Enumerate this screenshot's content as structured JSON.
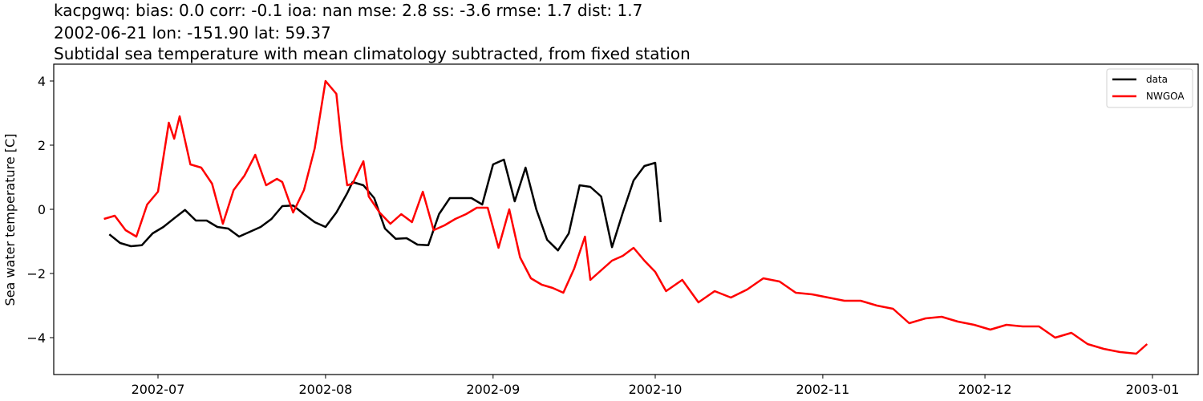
{
  "title": {
    "line1": "kacpgwq: bias: 0.0  corr: -0.1  ioa: nan  mse: 2.8  ss: -3.6  rmse: 1.7  dist: 1.7",
    "line2": "2002-06-21 lon: -151.90 lat: 59.37",
    "line3": "Subtidal sea temperature with mean climatology subtracted, from fixed station"
  },
  "colors": {
    "data": "#000000",
    "NWGOA": "#ff0000"
  },
  "chart_data": {
    "type": "line",
    "title": "kacpgwq: bias: 0.0  corr: -0.1  ioa: nan  mse: 2.8  ss: -3.6  rmse: 1.7  dist: 1.7 / 2002-06-21 lon: -151.90 lat: 59.37 / Subtidal sea temperature with mean climatology subtracted, from fixed station",
    "xlabel": "",
    "ylabel": "Sea water temperature [C]",
    "ylim": [
      -5.2,
      4.5
    ],
    "yticks": [
      -4,
      -2,
      0,
      2,
      4
    ],
    "yticklabels": [
      "−4",
      "−2",
      "0",
      "2",
      "4"
    ],
    "xticks": [
      "2002-07",
      "2002-08",
      "2002-09",
      "2002-10",
      "2002-11",
      "2002-12",
      "2003-01"
    ],
    "xlim": [
      "2002-06-06",
      "2003-01-09"
    ],
    "grid": false,
    "legend_position": "upper right",
    "series": [
      {
        "name": "data",
        "color": "#000000",
        "x": [
          "2002-06-22",
          "2002-06-24",
          "2002-06-26",
          "2002-06-28",
          "2002-06-30",
          "2002-07-02",
          "2002-07-04",
          "2002-07-06",
          "2002-07-08",
          "2002-07-10",
          "2002-07-12",
          "2002-07-14",
          "2002-07-16",
          "2002-07-18",
          "2002-07-20",
          "2002-07-22",
          "2002-07-24",
          "2002-07-26",
          "2002-07-28",
          "2002-07-30",
          "2002-08-01",
          "2002-08-03",
          "2002-08-05",
          "2002-08-06",
          "2002-08-08",
          "2002-08-10",
          "2002-08-12",
          "2002-08-14",
          "2002-08-16",
          "2002-08-18",
          "2002-08-20",
          "2002-08-22",
          "2002-08-24",
          "2002-08-26",
          "2002-08-28",
          "2002-08-30",
          "2002-09-01",
          "2002-09-03",
          "2002-09-05",
          "2002-09-07",
          "2002-09-09",
          "2002-09-11",
          "2002-09-13",
          "2002-09-15",
          "2002-09-17",
          "2002-09-19",
          "2002-09-21",
          "2002-09-23",
          "2002-09-25",
          "2002-09-27",
          "2002-09-29",
          "2002-10-01",
          "2002-10-02"
        ],
        "values": [
          -0.78,
          -1.05,
          -1.15,
          -1.12,
          -0.75,
          -0.55,
          -0.28,
          -0.02,
          -0.35,
          -0.35,
          -0.55,
          -0.6,
          -0.85,
          -0.7,
          -0.55,
          -0.3,
          0.1,
          0.12,
          -0.15,
          -0.4,
          -0.55,
          -0.1,
          0.5,
          0.85,
          0.75,
          0.35,
          -0.6,
          -0.92,
          -0.9,
          -1.1,
          -1.12,
          -0.15,
          0.35,
          0.35,
          0.35,
          0.15,
          1.4,
          1.55,
          0.25,
          1.3,
          0.0,
          -0.95,
          -1.28,
          -0.75,
          0.75,
          0.7,
          0.4,
          -1.18,
          -0.1,
          0.9,
          1.35,
          1.45,
          -0.4
        ]
      },
      {
        "name": "NWGOA",
        "color": "#ff0000",
        "x": [
          "2002-06-21",
          "2002-06-23",
          "2002-06-25",
          "2002-06-27",
          "2002-06-29",
          "2002-07-01",
          "2002-07-03",
          "2002-07-04",
          "2002-07-05",
          "2002-07-07",
          "2002-07-09",
          "2002-07-11",
          "2002-07-13",
          "2002-07-15",
          "2002-07-17",
          "2002-07-19",
          "2002-07-21",
          "2002-07-23",
          "2002-07-24",
          "2002-07-26",
          "2002-07-28",
          "2002-07-30",
          "2002-08-01",
          "2002-08-03",
          "2002-08-04",
          "2002-08-05",
          "2002-08-06",
          "2002-08-08",
          "2002-08-09",
          "2002-08-11",
          "2002-08-13",
          "2002-08-15",
          "2002-08-17",
          "2002-08-19",
          "2002-08-21",
          "2002-08-23",
          "2002-08-25",
          "2002-08-27",
          "2002-08-29",
          "2002-08-31",
          "2002-09-02",
          "2002-09-04",
          "2002-09-06",
          "2002-09-08",
          "2002-09-10",
          "2002-09-12",
          "2002-09-14",
          "2002-09-16",
          "2002-09-18",
          "2002-09-19",
          "2002-09-21",
          "2002-09-23",
          "2002-09-25",
          "2002-09-27",
          "2002-09-29",
          "2002-10-01",
          "2002-10-03",
          "2002-10-06",
          "2002-10-09",
          "2002-10-12",
          "2002-10-15",
          "2002-10-18",
          "2002-10-21",
          "2002-10-24",
          "2002-10-27",
          "2002-10-30",
          "2002-11-02",
          "2002-11-05",
          "2002-11-08",
          "2002-11-11",
          "2002-11-14",
          "2002-11-17",
          "2002-11-20",
          "2002-11-23",
          "2002-11-26",
          "2002-11-29",
          "2002-12-02",
          "2002-12-05",
          "2002-12-08",
          "2002-12-11",
          "2002-12-14",
          "2002-12-17",
          "2002-12-20",
          "2002-12-23",
          "2002-12-26",
          "2002-12-29",
          "2002-12-31"
        ],
        "values": [
          -0.3,
          -0.2,
          -0.65,
          -0.85,
          0.15,
          0.55,
          2.7,
          2.2,
          2.9,
          1.4,
          1.3,
          0.8,
          -0.45,
          0.6,
          1.05,
          1.7,
          0.75,
          0.95,
          0.85,
          -0.1,
          0.6,
          1.9,
          4.0,
          3.6,
          2.0,
          0.75,
          0.8,
          1.5,
          0.4,
          -0.1,
          -0.45,
          -0.15,
          -0.4,
          0.55,
          -0.65,
          -0.5,
          -0.3,
          -0.15,
          0.05,
          0.05,
          -1.2,
          0.0,
          -1.5,
          -2.15,
          -2.35,
          -2.45,
          -2.6,
          -1.85,
          -0.85,
          -2.2,
          -1.9,
          -1.6,
          -1.45,
          -1.2,
          -1.6,
          -1.95,
          -2.55,
          -2.2,
          -2.9,
          -2.55,
          -2.75,
          -2.5,
          -2.15,
          -2.25,
          -2.6,
          -2.65,
          -2.75,
          -2.85,
          -2.85,
          -3.0,
          -3.1,
          -3.55,
          -3.4,
          -3.35,
          -3.5,
          -3.6,
          -3.75,
          -3.6,
          -3.65,
          -3.65,
          -4.0,
          -3.85,
          -4.2,
          -4.35,
          -4.45,
          -4.5,
          -4.2
        ]
      }
    ]
  },
  "legend": {
    "items": [
      {
        "label": "data",
        "color": "#000000"
      },
      {
        "label": "NWGOA",
        "color": "#ff0000"
      }
    ]
  }
}
